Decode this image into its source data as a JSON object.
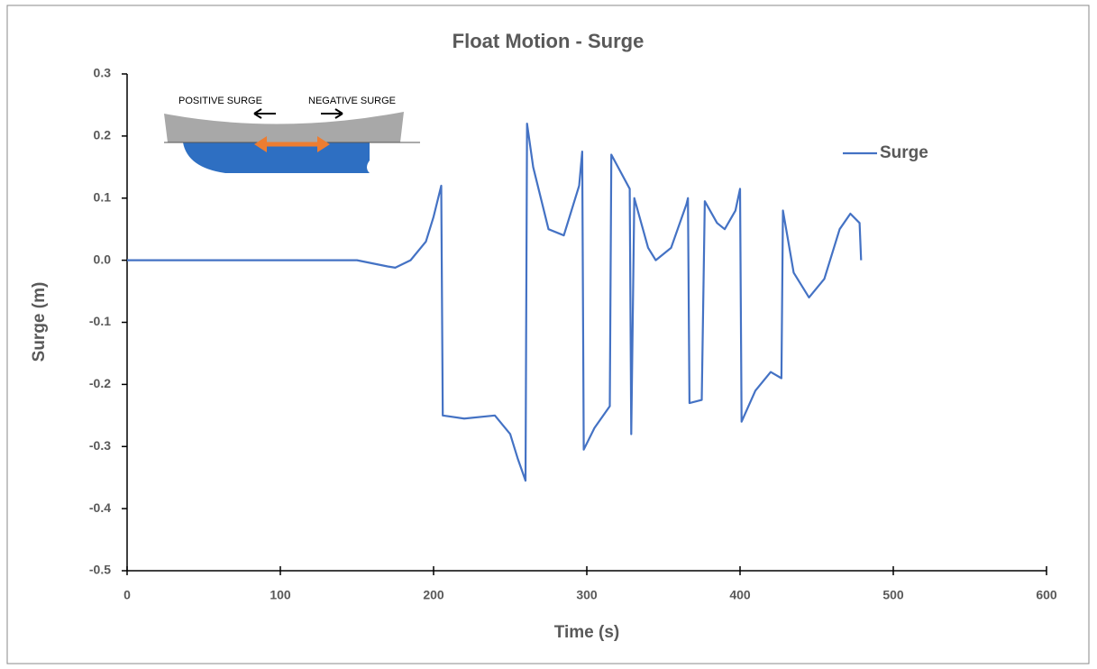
{
  "chart_data": {
    "type": "line",
    "title": "Float Motion - Surge",
    "x_label": "Time (s)",
    "y_label": "Surge (m)",
    "annotations": [
      "POSITIVE SURGE",
      "NEGATIVE SURGE"
    ],
    "xlim": [
      0,
      600
    ],
    "xticks": [
      0,
      100,
      200,
      300,
      400,
      500,
      600
    ],
    "ylim": [
      -0.5,
      0.3
    ],
    "yticks": [
      0.3,
      0.2,
      0.1,
      {
        "value": 0,
        "label": "0.0"
      },
      -0.1,
      -0.2,
      -0.3,
      -0.4,
      -0.5
    ],
    "grid": false,
    "legend": "right",
    "series": [
      {
        "name": "Surge",
        "color": "#4472c4",
        "x": [
          0,
          100,
          150,
          170,
          175,
          185,
          195,
          200,
          205,
          206,
          220,
          240,
          250,
          255,
          260,
          261,
          265,
          275,
          285,
          295,
          297,
          298,
          305,
          315,
          316,
          328,
          329,
          331,
          340,
          345,
          355,
          365,
          366,
          367,
          375,
          377,
          385,
          390,
          397,
          400,
          401,
          410,
          420,
          427,
          428,
          435,
          445,
          455,
          465,
          472,
          478,
          479
        ],
        "values": [
          0,
          0,
          0,
          -0.01,
          -0.012,
          0.0,
          0.03,
          0.07,
          0.12,
          -0.25,
          -0.255,
          -0.25,
          -0.28,
          -0.32,
          -0.355,
          0.22,
          0.15,
          0.05,
          0.04,
          0.12,
          0.175,
          -0.305,
          -0.27,
          -0.235,
          0.17,
          0.115,
          -0.28,
          0.1,
          0.02,
          0.0,
          0.02,
          0.09,
          0.1,
          -0.23,
          -0.225,
          0.095,
          0.06,
          0.05,
          0.08,
          0.115,
          -0.26,
          -0.21,
          -0.18,
          -0.19,
          0.08,
          -0.02,
          -0.06,
          -0.03,
          0.05,
          0.075,
          0.06,
          0.0
        ]
      }
    ]
  }
}
